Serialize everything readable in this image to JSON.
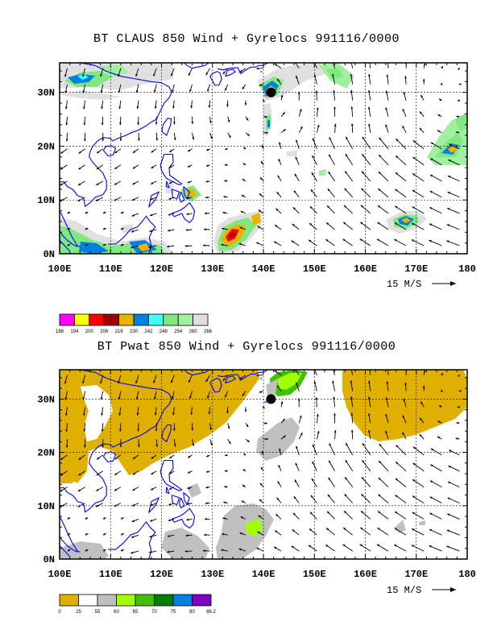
{
  "panels": [
    {
      "title": "BT CLAUS 850 Wind + Gyrelocs 991116/0000",
      "x_ticks": [
        "100E",
        "110E",
        "120E",
        "130E",
        "140E",
        "150E",
        "160E",
        "170E",
        "180"
      ],
      "y_ticks": [
        "0N",
        "10N",
        "20N",
        "30N"
      ],
      "ref_vector_label": "15 M/S",
      "colorbar": {
        "labels": [
          "188",
          "194",
          "200",
          "206",
          "218",
          "230",
          "242",
          "248",
          "254",
          "260",
          "266"
        ],
        "colors": [
          "#ff00ff",
          "#ffff00",
          "#ff0000",
          "#a00000",
          "#e8b400",
          "#0080e0",
          "#40ffff",
          "#80e880",
          "#a0f0a0",
          "#e0e0e0"
        ]
      }
    },
    {
      "title": "BT Pwat 850 Wind + Gyrelocs 991116/0000",
      "x_ticks": [
        "100E",
        "110E",
        "120E",
        "130E",
        "140E",
        "150E",
        "160E",
        "170E",
        "180"
      ],
      "y_ticks": [
        "0N",
        "10N",
        "20N",
        "30N"
      ],
      "ref_vector_label": "15 M/S",
      "colorbar": {
        "labels": [
          "0",
          "25",
          "55",
          "60",
          "65",
          "70",
          "75",
          "80",
          "86.2"
        ],
        "colors": [
          "#e0b000",
          "#ffffff",
          "#c0c0c0",
          "#a0ff00",
          "#40c000",
          "#008000",
          "#0080e0",
          "#8000c0"
        ]
      }
    }
  ],
  "gyre_location": {
    "lon": 141.5,
    "lat": 30.0
  },
  "chart_data": [
    {
      "type": "heatmap",
      "title": "BT CLAUS 850 Wind + Gyrelocs 991116/0000",
      "xlim": [
        100,
        180
      ],
      "ylim": [
        0,
        35
      ],
      "grid": true
    },
    {
      "type": "heatmap",
      "title": "BT Pwat 850 Wind + Gyrelocs 991116/0000",
      "xlim": [
        100,
        180
      ],
      "ylim": [
        0,
        35
      ],
      "grid": true
    }
  ]
}
